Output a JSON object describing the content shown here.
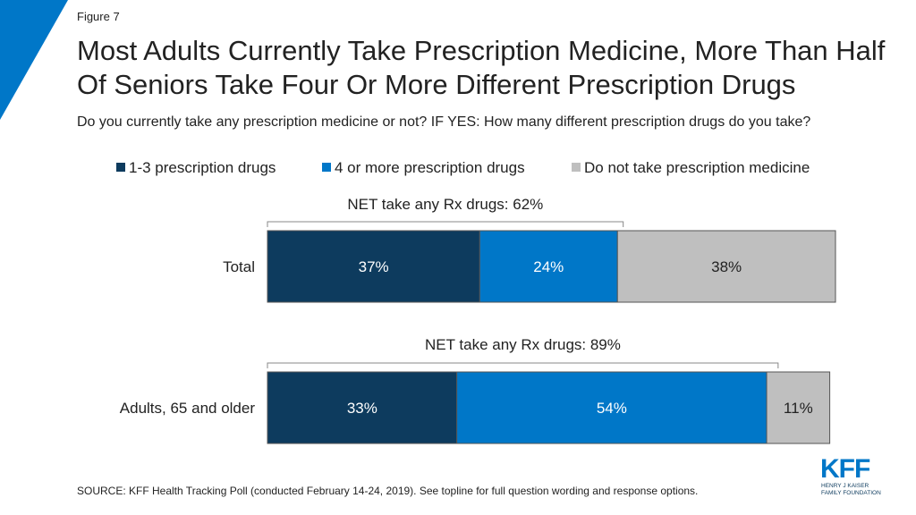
{
  "figure_label": "Figure 7",
  "title": "Most Adults Currently Take Prescription Medicine, More Than Half Of Seniors Take Four Or More Different Prescription Drugs",
  "question": "Do you currently take any prescription medicine or not? IF YES: How many different prescription drugs do you take?",
  "source": "SOURCE: KFF Health Tracking Poll (conducted February 14-24, 2019). See topline for full question wording and response options.",
  "logo": {
    "text": "KFF",
    "sub1": "HENRY J KAISER",
    "sub2": "FAMILY FOUNDATION"
  },
  "colors": {
    "accent": "#0077c8",
    "dark": "#0d3b5e",
    "gray": "#bfbfbf"
  },
  "legend": [
    {
      "label": "1-3 prescription drugs",
      "color": "#0d3b5e"
    },
    {
      "label": "4 or more prescription drugs",
      "color": "#0077c8"
    },
    {
      "label": "Do not take prescription medicine",
      "color": "#bfbfbf"
    }
  ],
  "chart_data": {
    "type": "bar",
    "orientation": "horizontal",
    "stacked": true,
    "title": "",
    "categories": [
      "Total",
      "Adults, 65 and older"
    ],
    "series": [
      {
        "name": "1-3 prescription drugs",
        "values": [
          37,
          33
        ],
        "labels": [
          "37%",
          "33%"
        ],
        "color": "#0d3b5e"
      },
      {
        "name": "4 or more prescription drugs",
        "values": [
          24,
          54
        ],
        "labels": [
          "24%",
          "54%"
        ],
        "color": "#0077c8"
      },
      {
        "name": "Do not take prescription medicine",
        "values": [
          38,
          11
        ],
        "labels": [
          "38%",
          "11%"
        ],
        "color": "#bfbfbf"
      }
    ],
    "net_annotations": [
      {
        "label": "NET take any Rx drugs: 62%",
        "value": 62
      },
      {
        "label": "NET take any Rx drugs: 89%",
        "value": 89
      }
    ],
    "xlim": [
      0,
      99
    ],
    "legend_position": "top",
    "grid": false
  }
}
